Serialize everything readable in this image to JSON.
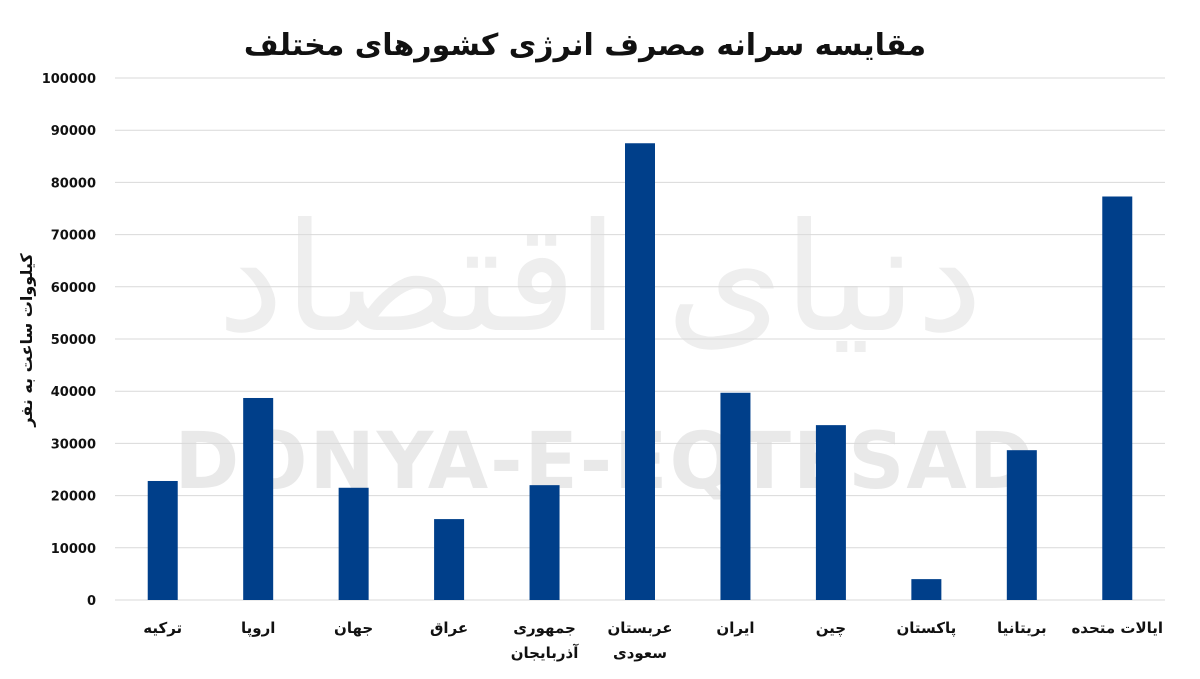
{
  "watermark": {
    "script": "دنیای اقتصاد",
    "latin": "DONYA-E-EQTESAD"
  },
  "chart_data": {
    "type": "bar",
    "title": "مقایسه سرانه مصرف انرژی کشورهای مختلف",
    "ylabel": "کیلووات ساعت به نفر",
    "xlabel": "",
    "ylim": [
      0,
      100000
    ],
    "yticks": [
      "0",
      "10000",
      "20000",
      "30000",
      "40000",
      "50000",
      "60000",
      "70000",
      "80000",
      "90000",
      "100000"
    ],
    "grid": true,
    "bar_color": "#003f8a",
    "categories": [
      [
        "ترکیه"
      ],
      [
        "اروپا"
      ],
      [
        "جهان"
      ],
      [
        "عراق"
      ],
      [
        "جمهوری",
        "آذربایجان"
      ],
      [
        "عربستان",
        "سعودی"
      ],
      [
        "ایران"
      ],
      [
        "چین"
      ],
      [
        "پاکستان"
      ],
      [
        "بریتانیا"
      ],
      [
        "ایالات متحده"
      ]
    ],
    "values": [
      22800,
      38700,
      21500,
      15500,
      22000,
      87500,
      39700,
      33500,
      4000,
      28700,
      77300
    ]
  }
}
